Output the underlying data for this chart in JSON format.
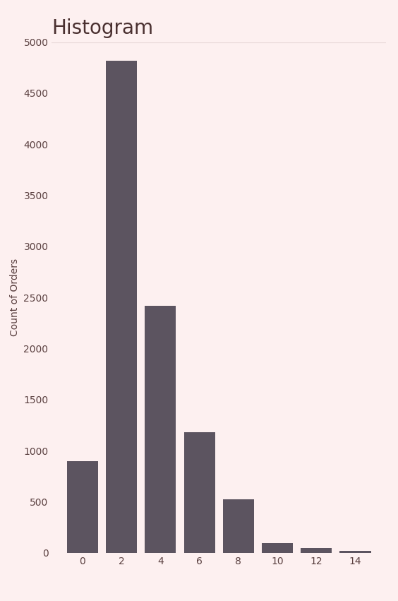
{
  "title": "Histogram",
  "title_fontsize": 20,
  "title_color": "#4a3030",
  "xlabel": "",
  "ylabel": "Count of Orders",
  "ylabel_fontsize": 10,
  "ylabel_color": "#5a4040",
  "background_color": "#fdf0f0",
  "bar_color": "#5c5460",
  "categories": [
    0,
    2,
    4,
    6,
    8,
    10,
    12,
    14
  ],
  "values": [
    900,
    4820,
    2420,
    1180,
    525,
    95,
    45,
    18
  ],
  "ylim": [
    0,
    5000
  ],
  "yticks": [
    0,
    500,
    1000,
    1500,
    2000,
    2500,
    3000,
    3500,
    4000,
    4500,
    5000
  ],
  "bar_width": 1.6,
  "tick_color": "#5a4040",
  "tick_fontsize": 10,
  "line_color": "#e8d8d8"
}
